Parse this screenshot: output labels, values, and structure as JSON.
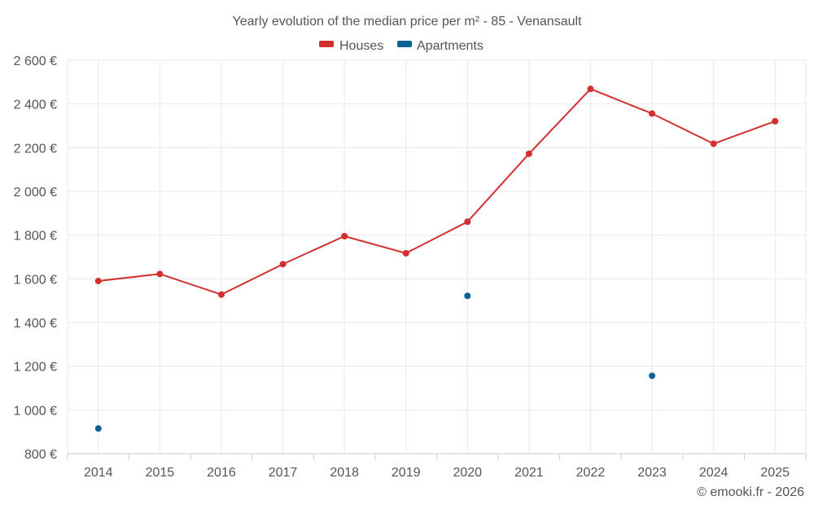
{
  "chart_data": {
    "type": "line",
    "title": "Yearly evolution of the median price per m² - 85 - Venansault",
    "categories": [
      "2014",
      "2015",
      "2016",
      "2017",
      "2018",
      "2019",
      "2020",
      "2021",
      "2022",
      "2023",
      "2024",
      "2025"
    ],
    "ylim": [
      800,
      2600
    ],
    "yticks": [
      800,
      1000,
      1200,
      1400,
      1600,
      1800,
      2000,
      2200,
      2400,
      2600
    ],
    "ytick_labels": [
      "800 €",
      "1 000 €",
      "1 200 €",
      "1 400 €",
      "1 600 €",
      "1 800 €",
      "2 000 €",
      "2 200 €",
      "2 400 €",
      "2 600 €"
    ],
    "grid": true,
    "legend_position": "top-center",
    "series": [
      {
        "name": "Houses",
        "color": "#d32f2f",
        "connected": true,
        "values": [
          1590,
          1622,
          1528,
          1667,
          1795,
          1717,
          1861,
          2172,
          2469,
          2356,
          2218,
          2321
        ]
      },
      {
        "name": "Apartments",
        "color": "#0a6296",
        "connected": false,
        "values": [
          915,
          null,
          null,
          null,
          null,
          null,
          1522,
          null,
          null,
          1156,
          null,
          null
        ]
      }
    ],
    "credit": "© emooki.fr - 2026"
  }
}
